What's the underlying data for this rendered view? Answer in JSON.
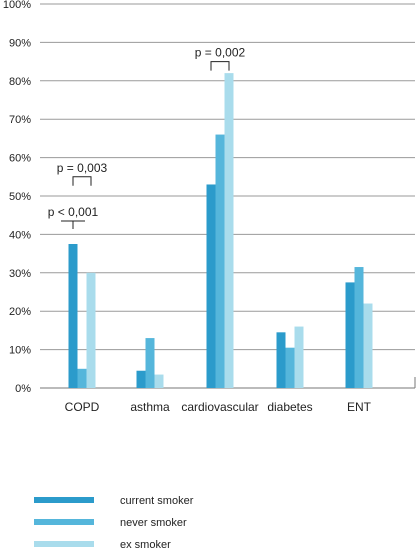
{
  "chart_data": {
    "type": "bar",
    "categories": [
      "COPD",
      "asthma",
      "cardiovascular",
      "diabetes",
      "ENT"
    ],
    "series": [
      {
        "name": "current smoker",
        "color": "#2b9bcb",
        "values": [
          37.5,
          4.5,
          53,
          14.5,
          27.5
        ]
      },
      {
        "name": "never smoker",
        "color": "#55b6db",
        "values": [
          5,
          13,
          66,
          10.5,
          31.5
        ]
      },
      {
        "name": "ex smoker",
        "color": "#a9dcec",
        "values": [
          30,
          3.5,
          82,
          16,
          22
        ]
      }
    ],
    "ylim": [
      0,
      100
    ],
    "yticks": [
      "0%",
      "10%",
      "20%",
      "30%",
      "40%",
      "50%",
      "60%",
      "70%",
      "80%",
      "90%",
      "100%"
    ],
    "grid": true,
    "legend": "bottom-left",
    "annotations": [
      {
        "text": "p < 0,001",
        "category": 0,
        "from_series": 0,
        "to_series": 0,
        "y": 43.5
      },
      {
        "text": "p = 0,003",
        "category": 0,
        "from_series": 0,
        "to_series": 2,
        "y": 55
      },
      {
        "text": "p = 0,002",
        "category": 2,
        "from_series": 0,
        "to_series": 2,
        "y": 85
      }
    ]
  }
}
